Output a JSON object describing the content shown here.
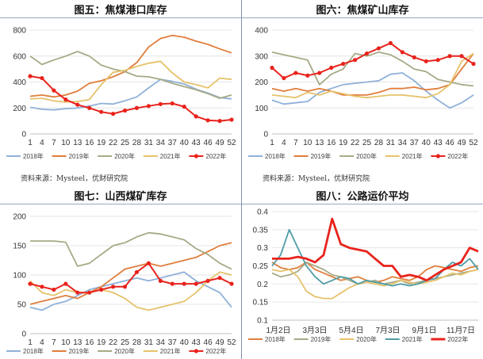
{
  "palette": {
    "y2018": "#8fb1d9",
    "y2019": "#e07e3c",
    "y2020": "#a7aa86",
    "y2021": "#e6c26b",
    "y2022": "#e8231c",
    "y2021_teal": "#4f9ca6"
  },
  "source_tl": "资料来源：Mysteel，优财研究院",
  "source_tr": "资料来源：Mysteel，优财研究院",
  "chart_data": [
    {
      "type": "line",
      "title": "图五：焦煤港口库存",
      "x": [
        1,
        4,
        7,
        10,
        13,
        16,
        19,
        22,
        25,
        28,
        31,
        34,
        37,
        40,
        43,
        46,
        49,
        52
      ],
      "x_ticks": [
        "1",
        "4",
        "7",
        "10",
        "13",
        "16",
        "19",
        "22",
        "25",
        "28",
        "31",
        "34",
        "37",
        "40",
        "43",
        "46",
        "49",
        "52"
      ],
      "ylim": [
        0,
        800
      ],
      "y_ticks": [
        "0",
        "200",
        "400",
        "600",
        "800"
      ],
      "series": [
        {
          "name": "2018年",
          "color": "#8fb1d9",
          "values": [
            205,
            190,
            185,
            195,
            200,
            215,
            235,
            230,
            255,
            285,
            355,
            420,
            405,
            385,
            345,
            315,
            280,
            270
          ]
        },
        {
          "name": "2019年",
          "color": "#e07e3c",
          "values": [
            290,
            300,
            285,
            300,
            330,
            390,
            410,
            440,
            480,
            550,
            670,
            735,
            760,
            745,
            715,
            690,
            655,
            625
          ]
        },
        {
          "name": "2020年",
          "color": "#a7aa86",
          "values": [
            600,
            535,
            570,
            600,
            635,
            600,
            530,
            500,
            480,
            445,
            440,
            420,
            390,
            365,
            340,
            310,
            275,
            300
          ]
        },
        {
          "name": "2021年",
          "color": "#e6c26b",
          "values": [
            270,
            275,
            255,
            245,
            250,
            265,
            380,
            475,
            490,
            520,
            545,
            560,
            470,
            400,
            380,
            355,
            430,
            420
          ]
        },
        {
          "name": "2022年",
          "color": "#e8231c",
          "marker": true,
          "values": [
            445,
            430,
            335,
            265,
            225,
            200,
            170,
            155,
            180,
            200,
            215,
            230,
            235,
            210,
            135,
            105,
            100,
            110
          ]
        }
      ]
    },
    {
      "type": "line",
      "title": "图六：焦煤矿山库存",
      "x": [
        1,
        4,
        7,
        10,
        13,
        16,
        19,
        22,
        25,
        28,
        31,
        34,
        37,
        40,
        43,
        46,
        49,
        52
      ],
      "x_ticks": [
        "1",
        "4",
        "7",
        "10",
        "13",
        "16",
        "19",
        "22",
        "25",
        "28",
        "31",
        "34",
        "37",
        "40",
        "43",
        "46",
        "49",
        "52"
      ],
      "ylim": [
        0,
        400
      ],
      "y_ticks": [
        "0",
        "100",
        "200",
        "300",
        "400"
      ],
      "series": [
        {
          "name": "2018年",
          "color": "#8fb1d9",
          "values": [
            130,
            115,
            120,
            125,
            160,
            175,
            190,
            195,
            200,
            205,
            230,
            235,
            205,
            165,
            130,
            100,
            120,
            150
          ]
        },
        {
          "name": "2019年",
          "color": "#e07e3c",
          "values": [
            175,
            165,
            175,
            165,
            175,
            165,
            150,
            150,
            150,
            160,
            175,
            175,
            180,
            170,
            175,
            190,
            250,
            310
          ]
        },
        {
          "name": "2020年",
          "color": "#a7aa86",
          "values": [
            315,
            305,
            295,
            285,
            190,
            230,
            250,
            310,
            300,
            315,
            305,
            280,
            250,
            240,
            210,
            200,
            190,
            185
          ]
        },
        {
          "name": "2021年",
          "color": "#e6c26b",
          "values": [
            150,
            145,
            140,
            160,
            150,
            165,
            155,
            145,
            140,
            145,
            150,
            150,
            145,
            140,
            155,
            190,
            280,
            310
          ]
        },
        {
          "name": "2022年",
          "color": "#e8231c",
          "marker": true,
          "values": [
            255,
            215,
            235,
            225,
            235,
            255,
            270,
            285,
            310,
            330,
            350,
            315,
            295,
            280,
            285,
            300,
            300,
            270
          ]
        }
      ]
    },
    {
      "type": "line",
      "title": "图七：山西煤矿库存",
      "x": [
        1,
        4,
        7,
        10,
        13,
        16,
        19,
        22,
        25,
        28,
        31,
        34,
        37,
        40,
        43,
        46,
        49,
        52
      ],
      "x_ticks": [
        "1",
        "4",
        "7",
        "10",
        "13",
        "16",
        "19",
        "22",
        "25",
        "28",
        "31",
        "34",
        "37",
        "40",
        "43",
        "46",
        "49",
        "52"
      ],
      "ylim": [
        0,
        200
      ],
      "y_ticks": [
        "0",
        "50",
        "100",
        "150",
        "200"
      ],
      "series": [
        {
          "name": "2018年",
          "color": "#8fb1d9",
          "values": [
            45,
            40,
            50,
            55,
            65,
            75,
            80,
            85,
            90,
            95,
            90,
            95,
            100,
            105,
            90,
            80,
            70,
            45
          ]
        },
        {
          "name": "2019年",
          "color": "#e07e3c",
          "values": [
            50,
            55,
            60,
            65,
            60,
            70,
            80,
            95,
            110,
            115,
            120,
            115,
            120,
            125,
            130,
            140,
            150,
            155
          ]
        },
        {
          "name": "2020年",
          "color": "#a7aa86",
          "values": [
            158,
            158,
            158,
            156,
            115,
            120,
            135,
            150,
            155,
            165,
            172,
            170,
            165,
            160,
            145,
            135,
            120,
            110
          ]
        },
        {
          "name": "2021年",
          "color": "#e6c26b",
          "values": [
            90,
            70,
            65,
            75,
            70,
            70,
            75,
            70,
            60,
            45,
            40,
            45,
            50,
            55,
            70,
            90,
            105,
            100
          ]
        },
        {
          "name": "2022年",
          "color": "#e8231c",
          "marker": true,
          "values": [
            85,
            80,
            75,
            85,
            70,
            70,
            75,
            80,
            80,
            105,
            120,
            90,
            85,
            85,
            85,
            90,
            95,
            85
          ]
        }
      ]
    },
    {
      "type": "line",
      "title": "图八：公路运价平均",
      "x_ticks": [
        "1月2日",
        "3月3日",
        "5月4日",
        "7月3日",
        "9月1日",
        "11月7日"
      ],
      "ylim": [
        0.1,
        0.4
      ],
      "y_ticks": [
        "0.1",
        "0.15",
        "0.2",
        "0.25",
        "0.3",
        "0.35",
        "0.4"
      ],
      "series": [
        {
          "name": "2018年",
          "color": "#e07e3c",
          "values": [
            0.26,
            0.245,
            0.24,
            0.245,
            0.26,
            0.24,
            0.23,
            0.22,
            0.21,
            0.215,
            0.22,
            0.21,
            0.205,
            0.21,
            0.22,
            0.215,
            0.21,
            0.22,
            0.24,
            0.25,
            0.245,
            0.24,
            0.235,
            0.245,
            0.25
          ]
        },
        {
          "name": "2019年",
          "color": "#a7aa86",
          "values": [
            0.23,
            0.22,
            0.225,
            0.235,
            0.26,
            0.25,
            0.24,
            0.225,
            0.22,
            0.21,
            0.2,
            0.205,
            0.21,
            0.2,
            0.205,
            0.21,
            0.2,
            0.205,
            0.21,
            0.215,
            0.22,
            0.225,
            0.23,
            0.235,
            0.24
          ]
        },
        {
          "name": "2020年",
          "color": "#e6c26b",
          "values": [
            0.24,
            0.235,
            0.24,
            0.22,
            0.18,
            0.165,
            0.16,
            0.16,
            0.175,
            0.19,
            0.2,
            0.205,
            0.2,
            0.195,
            0.2,
            0.21,
            0.205,
            0.2,
            0.205,
            0.21,
            0.22,
            0.23,
            0.225,
            0.235,
            0.24
          ]
        },
        {
          "name": "2021年",
          "color": "#4f9ca6",
          "values": [
            0.25,
            0.28,
            0.35,
            0.3,
            0.25,
            0.22,
            0.2,
            0.21,
            0.22,
            0.215,
            0.2,
            0.21,
            0.205,
            0.2,
            0.195,
            0.2,
            0.195,
            0.2,
            0.21,
            0.215,
            0.24,
            0.26,
            0.25,
            0.27,
            0.24
          ]
        },
        {
          "name": "2022年",
          "color": "#e8231c",
          "bold": true,
          "values": [
            0.27,
            0.27,
            0.27,
            0.275,
            0.27,
            0.26,
            0.28,
            0.38,
            0.31,
            0.3,
            0.295,
            0.29,
            0.27,
            0.25,
            0.25,
            0.22,
            0.225,
            0.22,
            0.21,
            0.225,
            0.24,
            0.25,
            0.26,
            0.3,
            0.29
          ]
        }
      ]
    }
  ]
}
